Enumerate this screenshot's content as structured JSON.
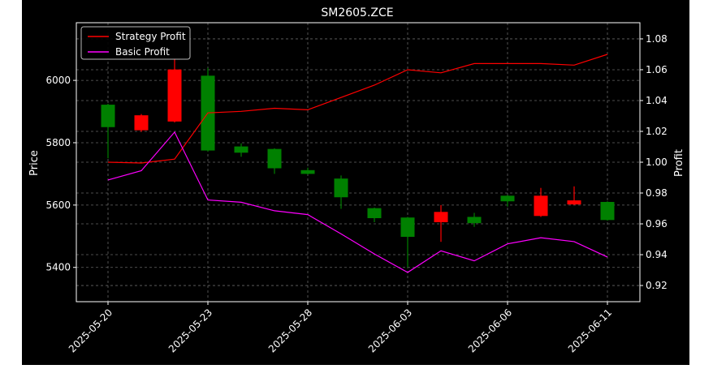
{
  "chart_data": {
    "type": "candlestick",
    "title": "SM2605.ZCE",
    "ylabel_left": "Price",
    "ylabel_right": "Profit",
    "xlabel": "",
    "x_tick_labels": [
      "2025-05-20",
      "2025-05-23",
      "2025-05-28",
      "2025-06-03",
      "2025-06-06",
      "2025-06-11"
    ],
    "y_left_ticks": [
      5400,
      5600,
      5800,
      6000
    ],
    "y_right_ticks": [
      0.92,
      0.94,
      0.96,
      0.98,
      1.0,
      1.02,
      1.04,
      1.06,
      1.08
    ],
    "y_right_tick_labels": [
      "0.92",
      "0.94",
      "0.96",
      "0.98",
      "1.00",
      "1.02",
      "1.04",
      "1.06",
      "1.08"
    ],
    "ylim_left": [
      5290,
      6185
    ],
    "ylim_right": [
      0.9095,
      1.0905
    ],
    "grid": true,
    "legend_position": "top-left",
    "colors": {
      "background": "#000000",
      "axes": "#ffffff",
      "grid": "#666666",
      "up_candle": "#008000",
      "down_candle": "#ff0000",
      "strategy": "#ff0000",
      "basic": "#ff00ff"
    },
    "candles": [
      {
        "i": 0,
        "open": 5922,
        "close": 5850,
        "high": 5925,
        "low": 5750
      },
      {
        "i": 1,
        "open": 5840,
        "close": 5888,
        "high": 5892,
        "low": 5835
      },
      {
        "i": 2,
        "open": 5868,
        "close": 6035,
        "high": 6070,
        "low": 5865
      },
      {
        "i": 3,
        "open": 6015,
        "close": 5775,
        "high": 6040,
        "low": 5772
      },
      {
        "i": 4,
        "open": 5788,
        "close": 5768,
        "high": 5798,
        "low": 5755
      },
      {
        "i": 5,
        "open": 5780,
        "close": 5718,
        "high": 5782,
        "low": 5700
      },
      {
        "i": 6,
        "open": 5712,
        "close": 5700,
        "high": 5720,
        "low": 5698
      },
      {
        "i": 7,
        "open": 5685,
        "close": 5625,
        "high": 5695,
        "low": 5588
      },
      {
        "i": 8,
        "open": 5590,
        "close": 5558,
        "high": 5592,
        "low": 5545
      },
      {
        "i": 9,
        "open": 5560,
        "close": 5498,
        "high": 5562,
        "low": 5400
      },
      {
        "i": 10,
        "open": 5545,
        "close": 5578,
        "high": 5600,
        "low": 5482
      },
      {
        "i": 11,
        "open": 5562,
        "close": 5542,
        "high": 5575,
        "low": 5530
      },
      {
        "i": 12,
        "open": 5630,
        "close": 5612,
        "high": 5632,
        "low": 5595
      },
      {
        "i": 13,
        "open": 5565,
        "close": 5630,
        "high": 5655,
        "low": 5562
      },
      {
        "i": 14,
        "open": 5602,
        "close": 5615,
        "high": 5660,
        "low": 5600
      },
      {
        "i": 15,
        "open": 5610,
        "close": 5552,
        "high": 5612,
        "low": 5550
      }
    ],
    "series": [
      {
        "name": "Strategy Profit",
        "color": "#ff0000",
        "values": [
          1.0,
          0.9995,
          1.002,
          1.032,
          1.033,
          1.035,
          1.034,
          1.042,
          1.05,
          1.06,
          1.058,
          1.064,
          1.064,
          1.064,
          1.063,
          1.07
        ]
      },
      {
        "name": "Basic Profit",
        "color": "#ff00ff",
        "values": [
          0.9885,
          0.9945,
          1.0195,
          0.9755,
          0.974,
          0.9685,
          0.966,
          0.9535,
          0.9405,
          0.9285,
          0.9425,
          0.936,
          0.947,
          0.951,
          0.9485,
          0.9385
        ]
      }
    ]
  }
}
